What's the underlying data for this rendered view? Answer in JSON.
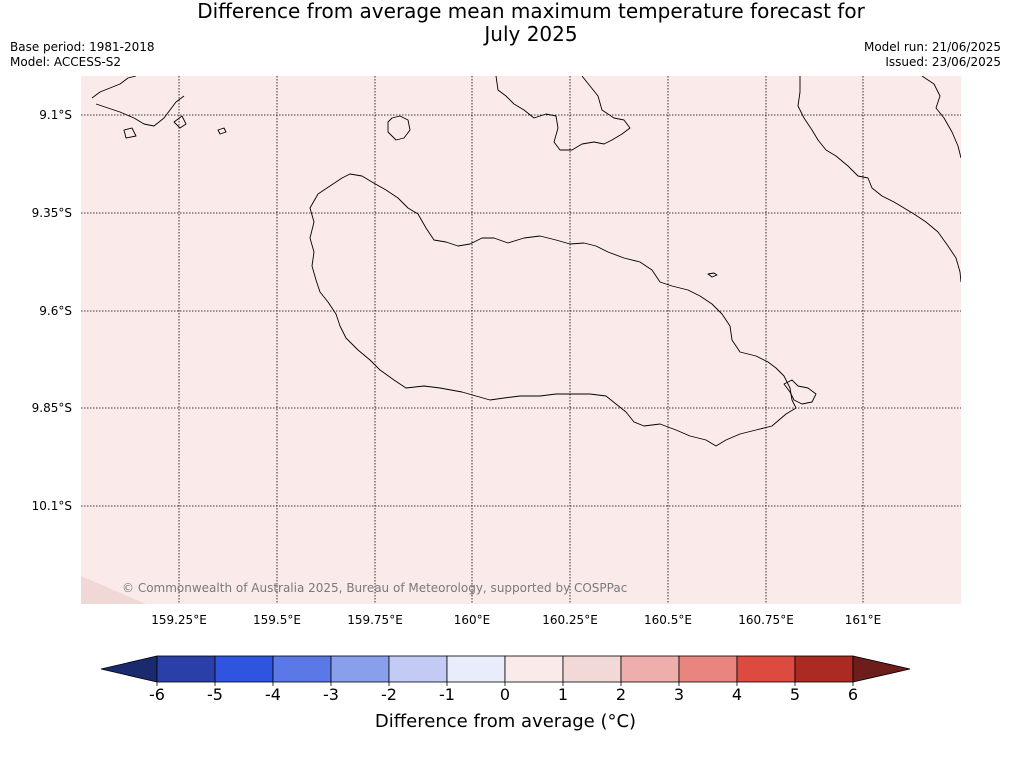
{
  "title": "Difference from average mean maximum temperature forecast for July 2025",
  "title_line1": "Difference from average mean maximum temperature forecast for",
  "title_line2": "July 2025",
  "meta": {
    "base_period": "Base period: 1981-2018",
    "model": "Model: ACCESS-S2",
    "model_run": "Model run: 21/06/2025",
    "issued": "Issued: 23/06/2025"
  },
  "map": {
    "fill_color": "#fbeaea",
    "corner_color": "#f0d8d6",
    "copyright": "© Commonwealth of Australia 2025, Bureau of Meteorology, supported by COSPPac",
    "lon_labels": [
      "159.25°E",
      "159.5°E",
      "159.75°E",
      "160°E",
      "160.25°E",
      "160.5°E",
      "160.75°E",
      "161°E"
    ],
    "lat_labels": [
      "9.1°S",
      "9.35°S",
      "9.6°S",
      "9.85°S",
      "10.1°S"
    ]
  },
  "colorbar": {
    "title": "Difference from average (°C)",
    "tick_labels": [
      "-6",
      "-5",
      "-4",
      "-3",
      "-2",
      "-1",
      "0",
      "1",
      "2",
      "3",
      "4",
      "5",
      "6"
    ],
    "under_color": "#1a2a6e",
    "over_color": "#6e1e1a",
    "colors": [
      "#2a3fa8",
      "#2f55e0",
      "#5a78e6",
      "#8a9fec",
      "#c3cbf5",
      "#e8ecfb",
      "#fbeaea",
      "#f2d8d6",
      "#eeaeab",
      "#e8857e",
      "#dd4b40",
      "#ab2a22"
    ]
  }
}
